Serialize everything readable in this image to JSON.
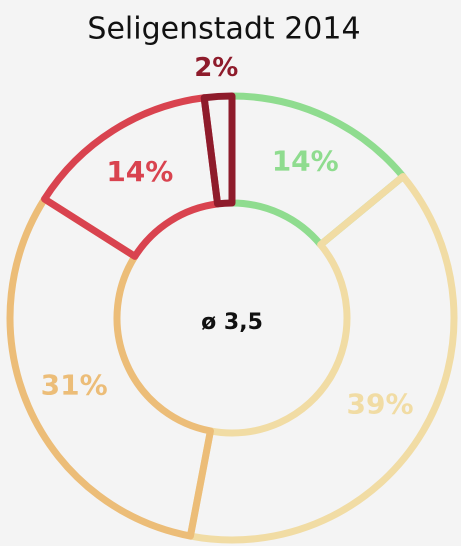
{
  "chart_data": {
    "type": "donut",
    "title": "Seligenstadt 2014",
    "center_label": "ø 3,5",
    "values": [
      14,
      39,
      31,
      14,
      2
    ],
    "value_labels": [
      "14%",
      "39%",
      "31%",
      "14%",
      "2%"
    ],
    "colors": [
      "#8fdc8f",
      "#f1dca4",
      "#ecbd78",
      "#d9434f",
      "#8e1b2b"
    ]
  }
}
